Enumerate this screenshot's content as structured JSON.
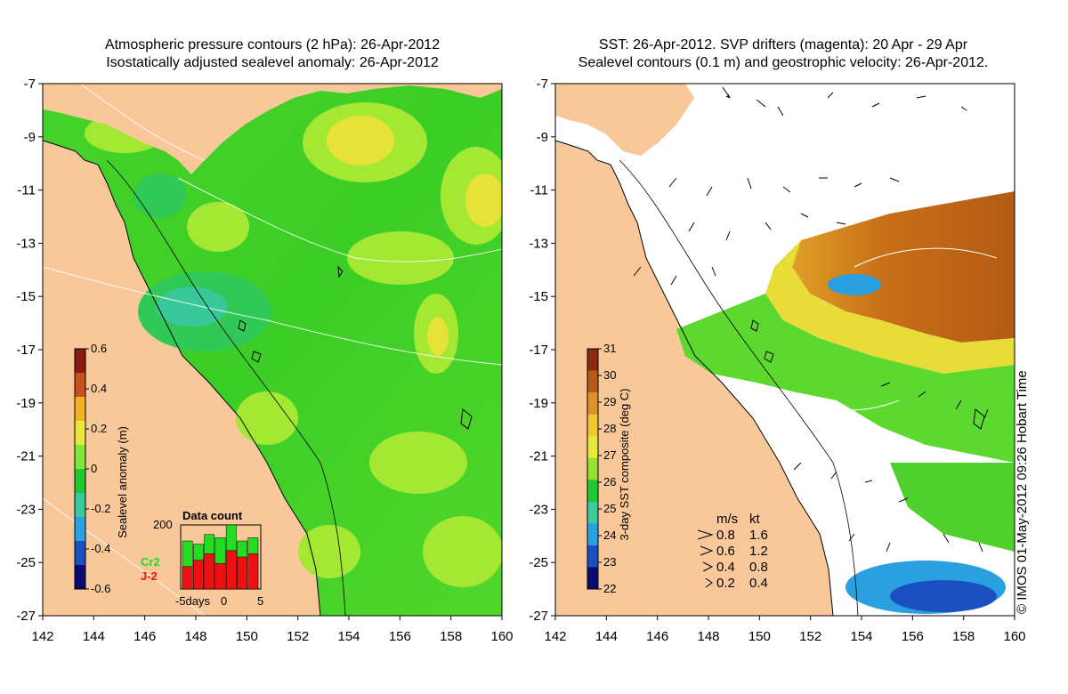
{
  "left_panel": {
    "title_line1": "Atmospheric pressure contours (2 hPa): 26-Apr-2012",
    "title_line2": "Isostatically adjusted sealevel anomaly: 26-Apr-2012",
    "colorbar": {
      "label": "Sealevel anomaly (m)",
      "ticks": [
        "0.6",
        "0.4",
        "0.2",
        "0",
        "-0.2",
        "-0.4",
        "-0.6"
      ],
      "colors": [
        "#8b1a10",
        "#c8501c",
        "#f0b420",
        "#e8e83a",
        "#7ce83a",
        "#22c832",
        "#3cc8a0",
        "#2aa0e0",
        "#1a50c0",
        "#0a0a70"
      ]
    },
    "data_count": {
      "title": "Data count",
      "max_label": "200",
      "axis_labels": [
        "-5days",
        "0",
        "5"
      ],
      "series": [
        {
          "name": "Cr2",
          "color": "#22dd22",
          "values": [
            150,
            140,
            170,
            160,
            210,
            150,
            160
          ]
        },
        {
          "name": "J-2",
          "color": "#ee1111",
          "values": [
            70,
            90,
            110,
            80,
            120,
            100,
            110
          ]
        }
      ]
    }
  },
  "right_panel": {
    "title_line1": "SST: 26-Apr-2012. SVP drifters (magenta): 20 Apr - 29 Apr",
    "title_line2": "Sealevel contours (0.1 m) and geostrophic velocity: 26-Apr-2012.",
    "colorbar": {
      "label": "3-day SST composite (deg C)",
      "ticks": [
        "31",
        "30",
        "29",
        "28",
        "27",
        "26",
        "25",
        "24",
        "23",
        "22"
      ],
      "colors": [
        "#8b2a10",
        "#b85a18",
        "#e09028",
        "#f0c830",
        "#e8e83a",
        "#98e032",
        "#22c832",
        "#3cc8a0",
        "#2aa0e0",
        "#1a50c0",
        "#0a0a70"
      ]
    },
    "velocity_legend": {
      "header_ms": "m/s",
      "header_kt": "kt",
      "rows": [
        {
          "ms": "0.8",
          "kt": "1.6"
        },
        {
          "ms": "0.6",
          "kt": "1.2"
        },
        {
          "ms": "0.4",
          "kt": "0.8"
        },
        {
          "ms": "0.2",
          "kt": "0.4"
        }
      ]
    }
  },
  "axes": {
    "lat_ticks": [
      "-7",
      "-9",
      "-11",
      "-13",
      "-15",
      "-17",
      "-19",
      "-21",
      "-23",
      "-25",
      "-27"
    ],
    "lon_ticks": [
      "142",
      "144",
      "146",
      "148",
      "150",
      "152",
      "154",
      "156",
      "158",
      "160"
    ]
  },
  "copyright": "© IMOS 01-May-2012 09:26 Hobart Time",
  "colors": {
    "land": "#f8c89a",
    "sea_green": "#3cd228",
    "sea_light": "#9ce832",
    "sea_yellow": "#eae838",
    "sea_cyan": "#34c878",
    "sst_orange": "#c87018",
    "sst_white": "#ffffff"
  }
}
